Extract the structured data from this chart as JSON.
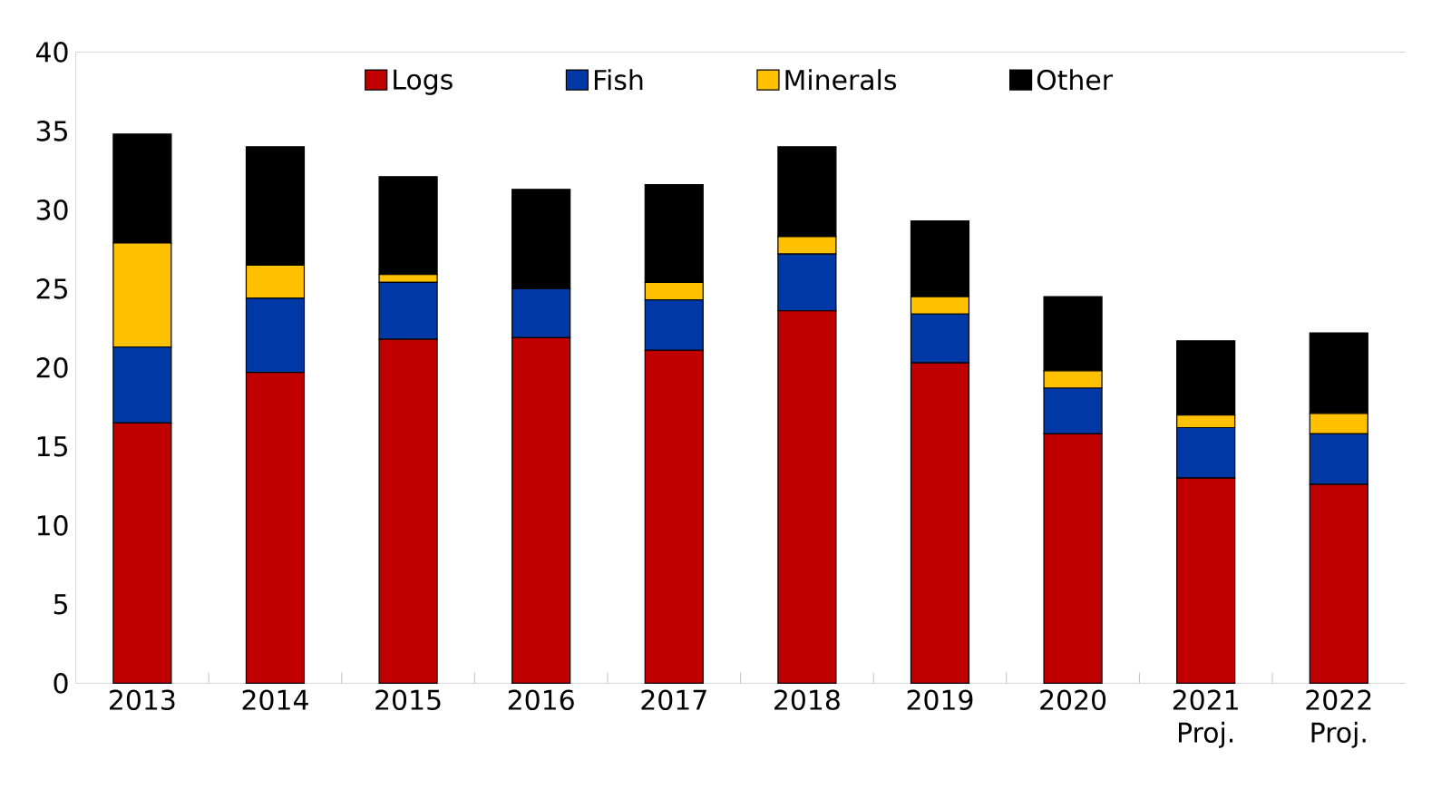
{
  "chart_data": {
    "type": "bar",
    "stacked": true,
    "categories": [
      "2013",
      "2014",
      "2015",
      "2016",
      "2017",
      "2018",
      "2019",
      "2020",
      "2021 Proj.",
      "2022 Proj."
    ],
    "series": [
      {
        "name": "Logs",
        "color": "#c00000",
        "values": [
          16.5,
          19.7,
          21.8,
          21.9,
          21.1,
          23.6,
          20.3,
          15.8,
          13.0,
          12.6
        ]
      },
      {
        "name": "Fish",
        "color": "#0039a6",
        "values": [
          4.8,
          4.7,
          3.6,
          3.1,
          3.2,
          3.6,
          3.1,
          2.9,
          3.2,
          3.2
        ]
      },
      {
        "name": "Minerals",
        "color": "#ffc000",
        "values": [
          6.6,
          2.1,
          0.5,
          0,
          1.1,
          1.1,
          1.1,
          1.1,
          0.8,
          1.3
        ]
      },
      {
        "name": "Other",
        "color": "#000000",
        "values": [
          6.9,
          7.5,
          6.2,
          6.3,
          6.2,
          5.7,
          4.8,
          4.7,
          4.7,
          5.1
        ]
      }
    ],
    "ylim": [
      0,
      40
    ],
    "yticks": [
      0,
      5,
      10,
      15,
      20,
      25,
      30,
      35,
      40
    ],
    "grid": false,
    "legend": "top"
  }
}
